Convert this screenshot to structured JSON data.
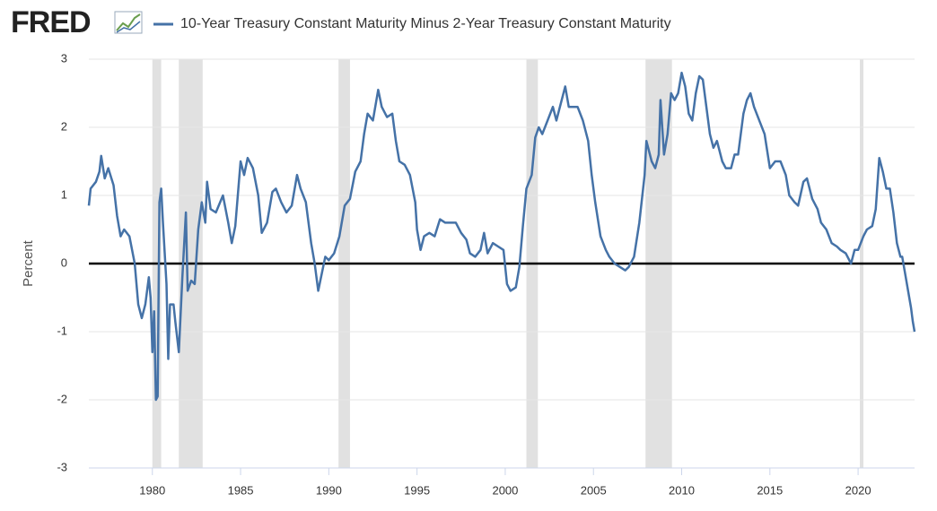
{
  "chart_data": {
    "type": "line",
    "logo": "FRED",
    "ylabel": "Percent",
    "xlim": [
      1976.4,
      2023.2
    ],
    "ylim": [
      -3,
      3
    ],
    "xticks": [
      1980,
      1985,
      1990,
      1995,
      2000,
      2005,
      2010,
      2015,
      2020
    ],
    "yticks": [
      -3,
      -2,
      -1,
      0,
      1,
      2,
      3
    ],
    "grid": true,
    "reference_line": 0,
    "recessions": [
      [
        1980.0,
        1980.5
      ],
      [
        1981.5,
        1982.85
      ],
      [
        1990.55,
        1991.2
      ],
      [
        2001.2,
        2001.85
      ],
      [
        2007.95,
        2009.45
      ],
      [
        2020.1,
        2020.3
      ]
    ],
    "x": [
      1976.4,
      1976.5,
      1976.8,
      1977.0,
      1977.1,
      1977.3,
      1977.5,
      1977.8,
      1978.0,
      1978.2,
      1978.4,
      1978.7,
      1979.0,
      1979.2,
      1979.4,
      1979.6,
      1979.8,
      1979.9,
      1980.0,
      1980.1,
      1980.2,
      1980.3,
      1980.4,
      1980.5,
      1980.6,
      1980.8,
      1980.9,
      1981.0,
      1981.2,
      1981.3,
      1981.5,
      1981.7,
      1981.9,
      1982.0,
      1982.2,
      1982.4,
      1982.6,
      1982.8,
      1983.0,
      1983.1,
      1983.3,
      1983.6,
      1984.0,
      1984.3,
      1984.5,
      1984.7,
      1985.0,
      1985.2,
      1985.4,
      1985.7,
      1986.0,
      1986.2,
      1986.5,
      1986.8,
      1987.0,
      1987.3,
      1987.6,
      1987.9,
      1988.2,
      1988.4,
      1988.7,
      1989.0,
      1989.2,
      1989.4,
      1989.6,
      1989.8,
      1990.0,
      1990.3,
      1990.6,
      1990.9,
      1991.2,
      1991.5,
      1991.8,
      1992.0,
      1992.2,
      1992.5,
      1992.8,
      1993.0,
      1993.3,
      1993.6,
      1993.8,
      1994.0,
      1994.3,
      1994.6,
      1994.9,
      1995.0,
      1995.2,
      1995.4,
      1995.7,
      1996.0,
      1996.3,
      1996.6,
      1996.9,
      1997.2,
      1997.5,
      1997.8,
      1998.0,
      1998.3,
      1998.6,
      1998.8,
      1999.0,
      1999.3,
      1999.6,
      1999.9,
      2000.1,
      2000.3,
      2000.6,
      2000.8,
      2001.0,
      2001.2,
      2001.5,
      2001.7,
      2001.9,
      2002.1,
      2002.4,
      2002.7,
      2002.9,
      2003.1,
      2003.4,
      2003.6,
      2003.9,
      2004.1,
      2004.4,
      2004.7,
      2004.9,
      2005.1,
      2005.4,
      2005.7,
      2005.9,
      2006.2,
      2006.5,
      2006.8,
      2007.0,
      2007.3,
      2007.6,
      2007.9,
      2008.0,
      2008.3,
      2008.5,
      2008.7,
      2008.8,
      2009.0,
      2009.2,
      2009.4,
      2009.6,
      2009.8,
      2010.0,
      2010.2,
      2010.4,
      2010.6,
      2010.8,
      2011.0,
      2011.2,
      2011.4,
      2011.6,
      2011.8,
      2012.0,
      2012.3,
      2012.5,
      2012.8,
      2013.0,
      2013.2,
      2013.5,
      2013.7,
      2013.9,
      2014.1,
      2014.4,
      2014.7,
      2015.0,
      2015.3,
      2015.6,
      2015.9,
      2016.1,
      2016.4,
      2016.6,
      2016.9,
      2017.1,
      2017.4,
      2017.7,
      2017.9,
      2018.2,
      2018.5,
      2018.8,
      2019.0,
      2019.3,
      2019.6,
      2019.8,
      2020.0,
      2020.3,
      2020.5,
      2020.8,
      2021.0,
      2021.2,
      2021.4,
      2021.6,
      2021.8,
      2022.0,
      2022.2,
      2022.4,
      2022.5,
      2022.7,
      2022.9,
      2023.0,
      2023.1,
      2023.2
    ],
    "series": [
      {
        "name": "10-Year Treasury Constant Maturity Minus 2-Year Treasury Constant Maturity",
        "color": "#4572a7",
        "values": [
          0.85,
          1.1,
          1.2,
          1.35,
          1.58,
          1.25,
          1.4,
          1.15,
          0.7,
          0.4,
          0.5,
          0.4,
          0.0,
          -0.6,
          -0.8,
          -0.6,
          -0.2,
          -0.5,
          -1.3,
          -0.7,
          -2.0,
          -1.95,
          0.9,
          1.1,
          0.6,
          -0.3,
          -1.4,
          -0.6,
          -0.6,
          -0.85,
          -1.3,
          -0.2,
          0.75,
          -0.4,
          -0.25,
          -0.3,
          0.5,
          0.9,
          0.6,
          1.2,
          0.8,
          0.75,
          1.0,
          0.6,
          0.3,
          0.55,
          1.5,
          1.3,
          1.55,
          1.4,
          1.0,
          0.45,
          0.6,
          1.05,
          1.1,
          0.9,
          0.75,
          0.85,
          1.3,
          1.1,
          0.9,
          0.3,
          0.0,
          -0.4,
          -0.15,
          0.1,
          0.05,
          0.15,
          0.4,
          0.85,
          0.95,
          1.35,
          1.5,
          1.9,
          2.2,
          2.1,
          2.55,
          2.3,
          2.15,
          2.2,
          1.8,
          1.5,
          1.45,
          1.3,
          0.9,
          0.5,
          0.2,
          0.4,
          0.45,
          0.4,
          0.65,
          0.6,
          0.6,
          0.6,
          0.45,
          0.35,
          0.15,
          0.1,
          0.2,
          0.45,
          0.15,
          0.3,
          0.25,
          0.2,
          -0.3,
          -0.4,
          -0.35,
          -0.05,
          0.55,
          1.1,
          1.3,
          1.85,
          2.0,
          1.9,
          2.1,
          2.3,
          2.1,
          2.3,
          2.6,
          2.3,
          2.3,
          2.3,
          2.1,
          1.8,
          1.3,
          0.9,
          0.4,
          0.2,
          0.1,
          0.0,
          -0.05,
          -0.1,
          -0.05,
          0.1,
          0.6,
          1.3,
          1.8,
          1.5,
          1.4,
          1.6,
          2.4,
          1.6,
          1.9,
          2.5,
          2.4,
          2.5,
          2.8,
          2.6,
          2.2,
          2.1,
          2.5,
          2.75,
          2.7,
          2.3,
          1.9,
          1.7,
          1.8,
          1.5,
          1.4,
          1.4,
          1.6,
          1.6,
          2.2,
          2.4,
          2.5,
          2.3,
          2.1,
          1.9,
          1.4,
          1.5,
          1.5,
          1.3,
          1.0,
          0.9,
          0.85,
          1.2,
          1.25,
          0.95,
          0.8,
          0.6,
          0.5,
          0.3,
          0.25,
          0.2,
          0.15,
          0.0,
          0.2,
          0.2,
          0.4,
          0.5,
          0.55,
          0.8,
          1.55,
          1.35,
          1.1,
          1.1,
          0.75,
          0.3,
          0.1,
          0.1,
          -0.2,
          -0.5,
          -0.65,
          -0.85,
          -1.0
        ]
      }
    ]
  }
}
